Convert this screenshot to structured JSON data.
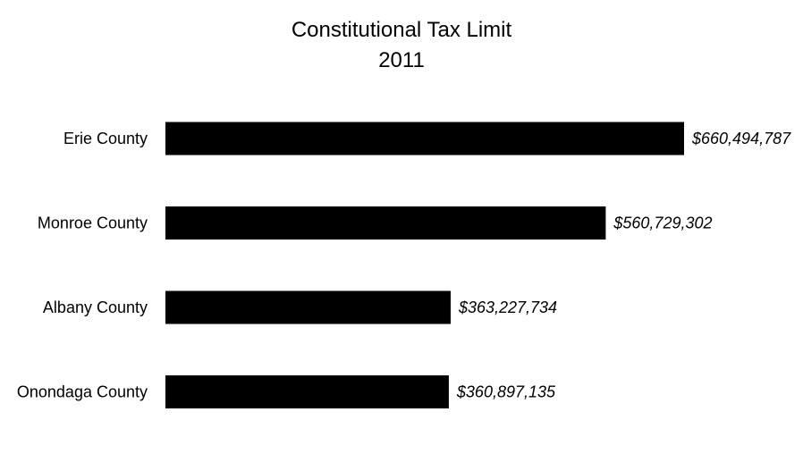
{
  "chart_data": {
    "type": "bar",
    "orientation": "horizontal",
    "title": "Constitutional Tax Limit",
    "subtitle": "2011",
    "categories": [
      "Erie County",
      "Monroe County",
      "Albany County",
      "Onondaga County"
    ],
    "values": [
      660494787,
      560729302,
      363227734,
      360897135
    ],
    "data_labels": [
      "$660,494,787",
      "$560,729,302",
      "$363,227,734",
      "$360,897,135"
    ],
    "xlabel": "",
    "ylabel": "",
    "xlim": [
      0,
      660494787
    ],
    "grid": false,
    "legend": "none",
    "bar_color": "#000000"
  }
}
